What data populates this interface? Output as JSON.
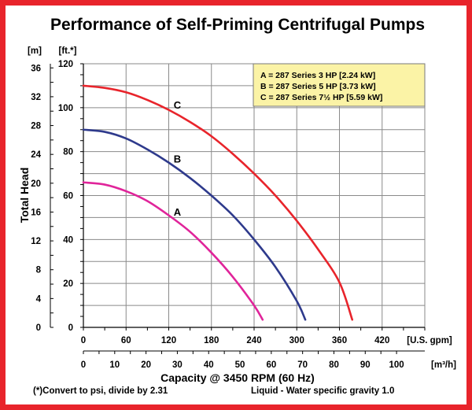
{
  "chart_data": {
    "type": "line",
    "title": "Performance of Self-Priming Centrifugal Pumps",
    "ylabel": "Total Head",
    "y_units_m": "[m]",
    "y_units_ft": "[ft.*]",
    "xlabel": "Capacity @ 3450 RPM (60 Hz)",
    "x_units_gpm": "[U.S. gpm]",
    "x_units_m3h": "[m³/h]",
    "footnote_psi": "(*)Convert to psi, divide by 2.31",
    "footnote_liquid": "Liquid - Water specific gravity 1.0",
    "xlim_gpm": [
      0,
      480
    ],
    "ylim_ft": [
      0,
      120
    ],
    "x_ticks_gpm": [
      "0",
      "60",
      "120",
      "180",
      "240",
      "300",
      "360",
      "420"
    ],
    "x_ticks_m3h": [
      "0",
      "10",
      "20",
      "30",
      "40",
      "50",
      "60",
      "70",
      "80",
      "90",
      "100"
    ],
    "y_ticks_ft": [
      "0",
      "20",
      "40",
      "60",
      "80",
      "100",
      "120"
    ],
    "y_ticks_m": [
      "0",
      "4",
      "8",
      "12",
      "16",
      "20",
      "24",
      "28",
      "32",
      "36"
    ],
    "grid": true,
    "legend_position": "top-right",
    "legend": [
      "A = 287 Series 3 HP [2.24 kW]",
      "B = 287 Series 5 HP [3.73 kW]",
      "C = 287 Series 7½ HP [5.59 kW]"
    ],
    "series": [
      {
        "name": "A",
        "color": "#e0249a",
        "x": [
          0,
          30,
          60,
          90,
          120,
          150,
          180,
          210,
          240,
          252
        ],
        "y": [
          66,
          65,
          62,
          57.5,
          51,
          43.5,
          34,
          23,
          10,
          3.5
        ]
      },
      {
        "name": "B",
        "color": "#2e3a8c",
        "x": [
          0,
          30,
          60,
          90,
          120,
          150,
          180,
          210,
          240,
          270,
          300,
          312
        ],
        "y": [
          90,
          89,
          86,
          81,
          75,
          68,
          60,
          51,
          40,
          27.5,
          12,
          3.5
        ]
      },
      {
        "name": "C",
        "color": "#e8242b",
        "x": [
          0,
          30,
          60,
          90,
          120,
          150,
          180,
          210,
          240,
          270,
          300,
          330,
          360,
          378
        ],
        "y": [
          110,
          109,
          107,
          103.5,
          99,
          93.5,
          87,
          79,
          70,
          60,
          48.5,
          35.5,
          20.5,
          3.5
        ]
      }
    ]
  }
}
